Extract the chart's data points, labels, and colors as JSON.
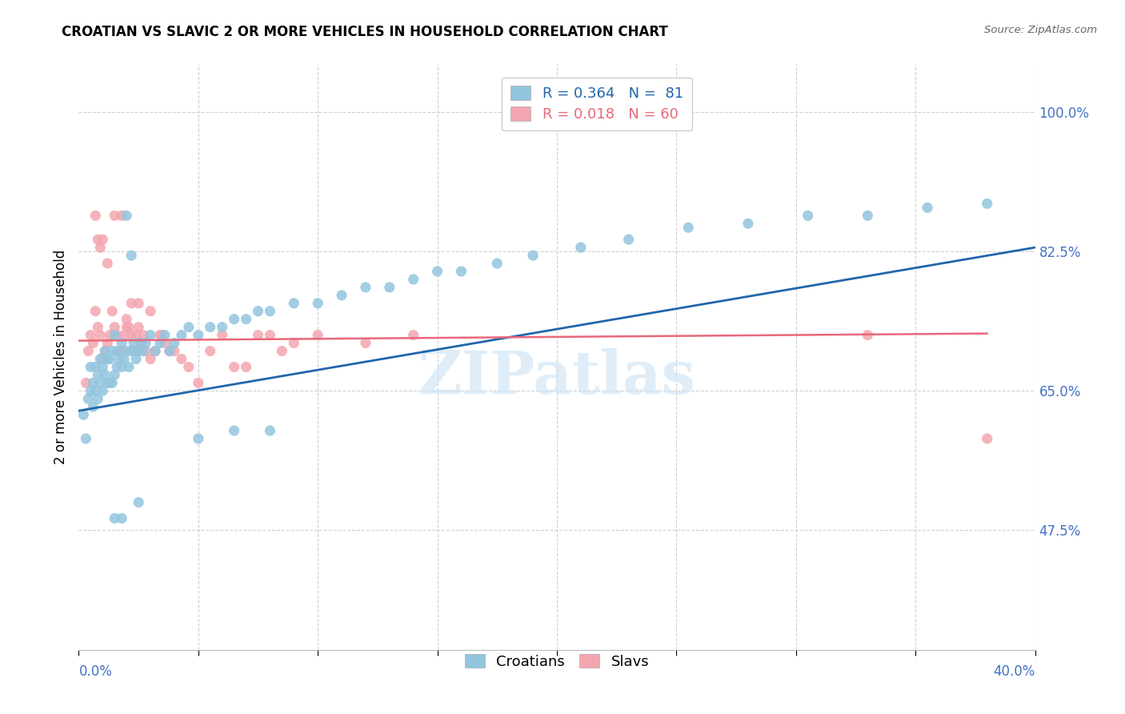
{
  "title": "CROATIAN VS SLAVIC 2 OR MORE VEHICLES IN HOUSEHOLD CORRELATION CHART",
  "source": "Source: ZipAtlas.com",
  "ylabel": "2 or more Vehicles in Household",
  "croatian_color": "#92c5de",
  "slavic_color": "#f4a6b0",
  "trendline_croatian_color": "#2166ac",
  "trendline_slavic_color": "#e8687a",
  "watermark": "ZIPatlas",
  "xlim": [
    0.0,
    0.4
  ],
  "ylim": [
    0.325,
    1.06
  ],
  "ytick_vals": [
    1.0,
    0.825,
    0.65,
    0.475
  ],
  "ytick_labels": [
    "100.0%",
    "82.5%",
    "65.0%",
    "47.5%"
  ],
  "xtick_vals": [
    0.0,
    0.05,
    0.1,
    0.15,
    0.2,
    0.25,
    0.3,
    0.35,
    0.4
  ],
  "xtick_label_left": "0.0%",
  "xtick_label_right": "40.0%",
  "legend1_line1": "R = 0.364",
  "legend1_n1": "N =  81",
  "legend1_line2": "R = 0.018",
  "legend1_n2": "N = 60",
  "axis_label_color": "#4472c4",
  "grid_color": "#d0d0d0",
  "title_fontsize": 12,
  "axis_fontsize": 12,
  "tick_fontsize": 12,
  "croatian_x": [
    0.002,
    0.003,
    0.004,
    0.005,
    0.005,
    0.006,
    0.006,
    0.007,
    0.007,
    0.008,
    0.008,
    0.009,
    0.009,
    0.01,
    0.01,
    0.011,
    0.011,
    0.012,
    0.012,
    0.013,
    0.013,
    0.014,
    0.014,
    0.015,
    0.015,
    0.016,
    0.016,
    0.017,
    0.018,
    0.018,
    0.019,
    0.02,
    0.021,
    0.022,
    0.023,
    0.024,
    0.025,
    0.026,
    0.027,
    0.028,
    0.03,
    0.032,
    0.034,
    0.036,
    0.038,
    0.04,
    0.043,
    0.046,
    0.05,
    0.055,
    0.06,
    0.065,
    0.07,
    0.075,
    0.08,
    0.09,
    0.1,
    0.11,
    0.12,
    0.13,
    0.14,
    0.15,
    0.16,
    0.175,
    0.19,
    0.21,
    0.23,
    0.255,
    0.28,
    0.305,
    0.33,
    0.355,
    0.38,
    0.05,
    0.065,
    0.08,
    0.015,
    0.018,
    0.025,
    0.02,
    0.022
  ],
  "croatian_y": [
    0.62,
    0.59,
    0.64,
    0.65,
    0.68,
    0.63,
    0.66,
    0.65,
    0.68,
    0.64,
    0.67,
    0.66,
    0.69,
    0.65,
    0.68,
    0.67,
    0.7,
    0.66,
    0.69,
    0.66,
    0.69,
    0.66,
    0.7,
    0.67,
    0.72,
    0.68,
    0.7,
    0.69,
    0.68,
    0.71,
    0.69,
    0.7,
    0.68,
    0.7,
    0.71,
    0.69,
    0.7,
    0.71,
    0.7,
    0.71,
    0.72,
    0.7,
    0.71,
    0.72,
    0.7,
    0.71,
    0.72,
    0.73,
    0.72,
    0.73,
    0.73,
    0.74,
    0.74,
    0.75,
    0.75,
    0.76,
    0.76,
    0.77,
    0.78,
    0.78,
    0.79,
    0.8,
    0.8,
    0.81,
    0.82,
    0.83,
    0.84,
    0.855,
    0.86,
    0.87,
    0.87,
    0.88,
    0.885,
    0.59,
    0.6,
    0.6,
    0.49,
    0.49,
    0.51,
    0.87,
    0.82
  ],
  "slavic_x": [
    0.003,
    0.004,
    0.005,
    0.006,
    0.007,
    0.008,
    0.009,
    0.01,
    0.011,
    0.012,
    0.013,
    0.014,
    0.015,
    0.016,
    0.017,
    0.018,
    0.019,
    0.02,
    0.021,
    0.022,
    0.023,
    0.024,
    0.025,
    0.026,
    0.027,
    0.028,
    0.03,
    0.032,
    0.034,
    0.036,
    0.038,
    0.04,
    0.043,
    0.046,
    0.05,
    0.055,
    0.06,
    0.065,
    0.07,
    0.075,
    0.08,
    0.085,
    0.09,
    0.01,
    0.012,
    0.015,
    0.018,
    0.007,
    0.008,
    0.009,
    0.02,
    0.022,
    0.025,
    0.03,
    0.035,
    0.1,
    0.12,
    0.14,
    0.33,
    0.38
  ],
  "slavic_y": [
    0.66,
    0.7,
    0.72,
    0.71,
    0.75,
    0.73,
    0.72,
    0.69,
    0.7,
    0.71,
    0.72,
    0.75,
    0.73,
    0.72,
    0.7,
    0.7,
    0.72,
    0.74,
    0.73,
    0.72,
    0.7,
    0.72,
    0.73,
    0.71,
    0.72,
    0.7,
    0.69,
    0.7,
    0.72,
    0.71,
    0.7,
    0.7,
    0.69,
    0.68,
    0.66,
    0.7,
    0.72,
    0.68,
    0.68,
    0.72,
    0.72,
    0.7,
    0.71,
    0.84,
    0.81,
    0.87,
    0.87,
    0.87,
    0.84,
    0.83,
    0.73,
    0.76,
    0.76,
    0.75,
    0.72,
    0.72,
    0.71,
    0.72,
    0.72,
    0.59
  ],
  "trendline_cro_x0": 0.0,
  "trendline_cro_x1": 0.4,
  "trendline_cro_y0": 0.625,
  "trendline_cro_y1": 0.83,
  "trendline_slav_x0": 0.0,
  "trendline_slav_x1": 0.38,
  "trendline_slav_y0": 0.713,
  "trendline_slav_y1": 0.722
}
